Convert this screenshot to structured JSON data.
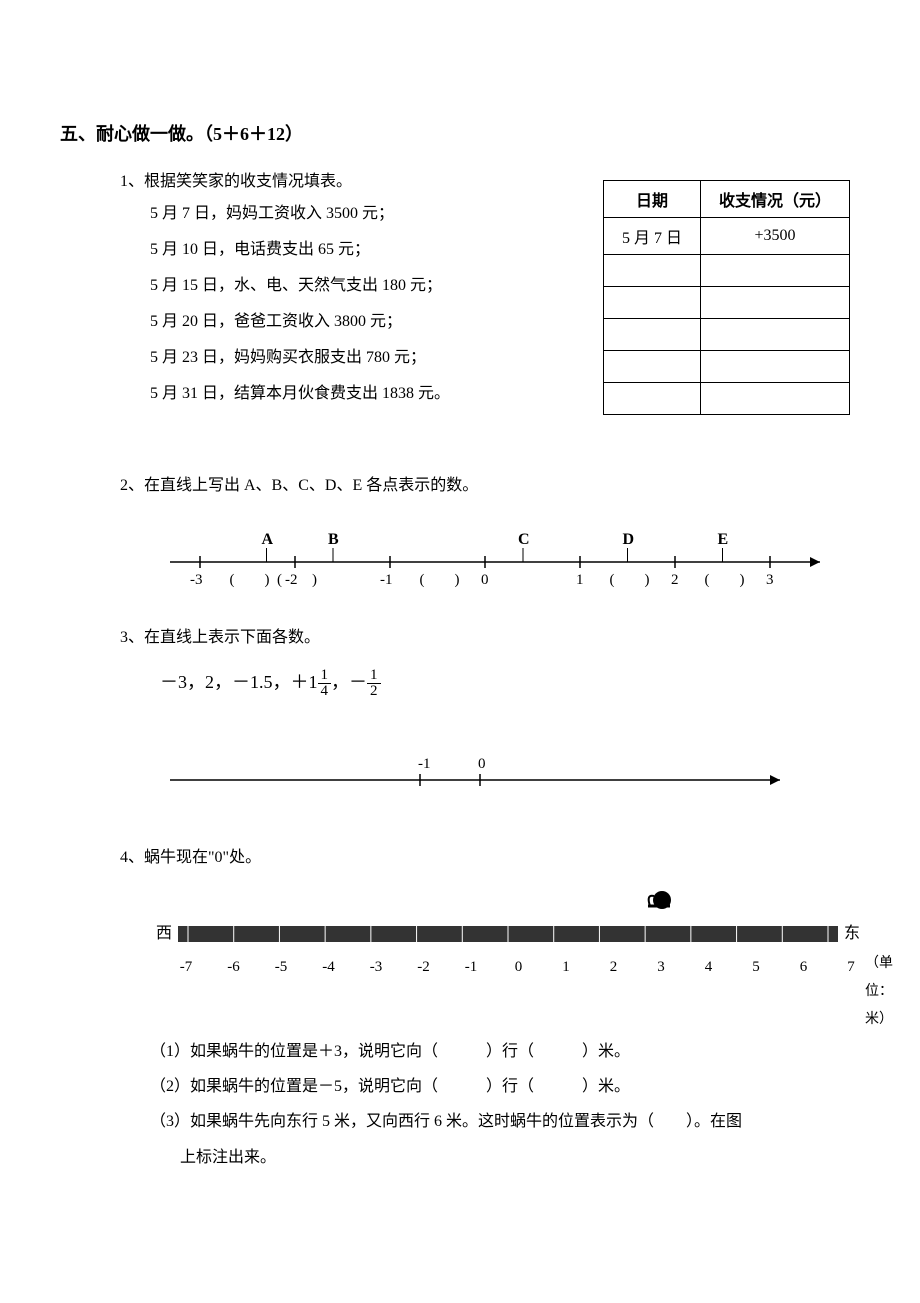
{
  "section": {
    "title": "五、耐心做一做。（5＋6＋12）"
  },
  "p1": {
    "title": "1、根据笑笑家的收支情况填表。",
    "lines": [
      "5 月 7 日，妈妈工资收入 3500 元；",
      "5 月 10 日，电话费支出 65 元；",
      "5 月 15 日，水、电、天然气支出 180 元；",
      "5 月 20 日，爸爸工资收入 3800 元；",
      "5 月 23 日，妈妈购买衣服支出 780 元；",
      "5 月 31 日，结算本月伙食费支出 1838 元。"
    ],
    "table": {
      "headers": [
        "日期",
        "收支情况（元）"
      ],
      "first_row": [
        "5 月 7 日",
        "+3500"
      ],
      "empty_rows": 5
    }
  },
  "p2": {
    "title": "2、在直线上写出 A、B、C、D、E 各点表示的数。",
    "ticks": [
      -3,
      -2,
      -1,
      0,
      1,
      2,
      3
    ],
    "paren_positions": [
      -2.5,
      -2,
      -0.5,
      1.5,
      2.5
    ],
    "letters": {
      "A": -2.3,
      "B": -1.6,
      "C": 0.4,
      "D": 1.5,
      "E": 2.5
    }
  },
  "p3": {
    "title": "3、在直线上表示下面各数。",
    "numbers_text": "－3，2，－1.5，＋1¼，－½",
    "axis": {
      "center_label": "0",
      "left_label": "-1"
    }
  },
  "p4": {
    "title": "4、蜗牛现在\"0\"处。",
    "west": "西",
    "east": "东",
    "ticks": [
      -7,
      -6,
      -5,
      -4,
      -3,
      -2,
      -1,
      0,
      1,
      2,
      3,
      4,
      5,
      6,
      7
    ],
    "unit": "（单位：米）",
    "q1": "（1）如果蜗牛的位置是＋3，说明它向（　　　）行（　　　）米。",
    "q2": "（2）如果蜗牛的位置是－5，说明它向（　　　）行（　　　）米。",
    "q3a": "（3）如果蜗牛先向东行 5 米，又向西行 6 米。这时蜗牛的位置表示为（　　）。在图",
    "q3b": "上标注出来。"
  }
}
